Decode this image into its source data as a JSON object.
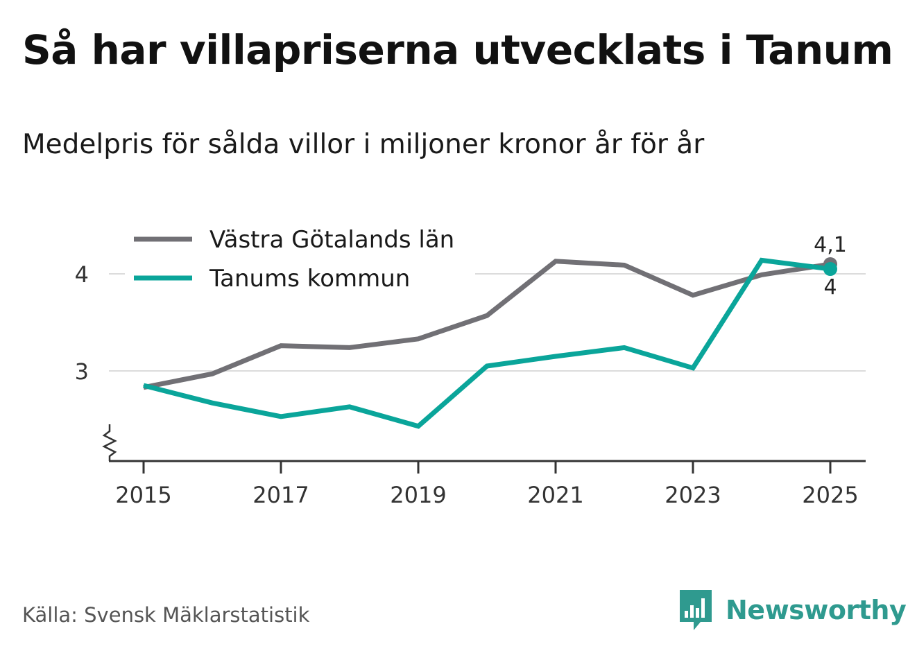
{
  "header": {
    "title": "Så har villapriserna utvecklats i Tanum",
    "subtitle": "Medelpris för sålda villor i miljoner kronor år för år"
  },
  "footer": {
    "source": "Källa: Svensk Mäklarstatistik",
    "brand": "Newsworthy"
  },
  "colors": {
    "series_gray": "#717075",
    "series_teal": "#0aa59a",
    "grid": "#dcdcdc",
    "axis": "#333333",
    "brand": "#2f9a8f"
  },
  "chart_data": {
    "type": "line",
    "title": "Så har villapriserna utvecklats i Tanum",
    "subtitle": "Medelpris för sålda villor i miljoner kronor år för år",
    "xlabel": "",
    "ylabel": "",
    "x": [
      2015,
      2016,
      2017,
      2018,
      2019,
      2020,
      2021,
      2022,
      2023,
      2024,
      2025
    ],
    "x_tick_labels": [
      "2015",
      "2017",
      "2019",
      "2021",
      "2023",
      "2025"
    ],
    "y_tick_labels": [
      "3",
      "4"
    ],
    "y_ticks": [
      3,
      4
    ],
    "ylim": [
      2.06,
      4.12
    ],
    "xlim": [
      2014.5,
      2025.5
    ],
    "grid": true,
    "axis_break": true,
    "legend_position": "top-left",
    "series": [
      {
        "name": "Västra Götalands län",
        "color": "#717075",
        "values": [
          2.83,
          2.97,
          3.26,
          3.24,
          3.33,
          3.57,
          4.13,
          4.09,
          3.78,
          3.99,
          4.1
        ],
        "end_label": "4,1",
        "end_label_position": "above"
      },
      {
        "name": "Tanums kommun",
        "color": "#0aa59a",
        "values": [
          2.85,
          2.67,
          2.53,
          2.63,
          2.43,
          3.05,
          3.15,
          3.24,
          3.03,
          4.14,
          4.05
        ],
        "end_label": "4",
        "end_label_position": "below"
      }
    ]
  }
}
